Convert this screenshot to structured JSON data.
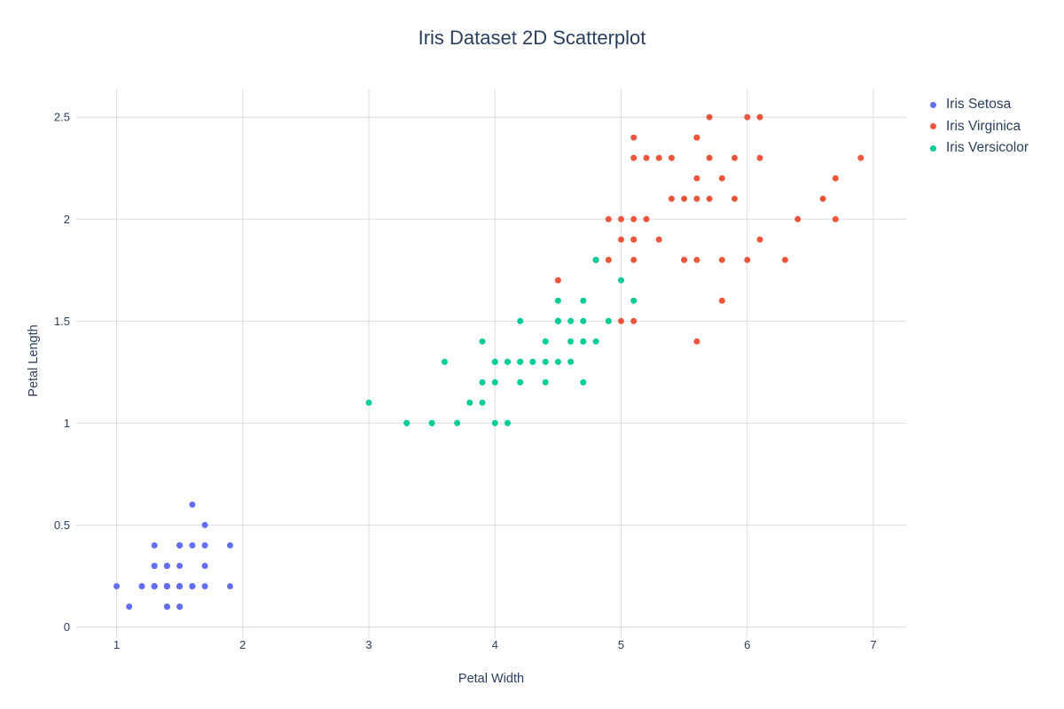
{
  "title": "Iris Dataset 2D Scatterplot",
  "colors": {
    "text": "#2a3f5f",
    "grid": "#dedede",
    "background": "#ffffff",
    "setosa": "#636EFA",
    "virginica": "#EF553B",
    "versicolor": "#00CC96"
  },
  "chart_data": {
    "type": "scatter",
    "title": "Iris Dataset 2D Scatterplot",
    "xlabel": "Petal Width",
    "ylabel": "Petal Length",
    "xlim": [
      0.68,
      7.26
    ],
    "ylim": [
      -0.05,
      2.64
    ],
    "xticks": [
      1,
      2,
      3,
      4,
      5,
      6,
      7
    ],
    "xtick_labels": [
      "1",
      "2",
      "3",
      "4",
      "5",
      "6",
      "7"
    ],
    "yticks": [
      0,
      0.5,
      1,
      1.5,
      2,
      2.5
    ],
    "ytick_labels": [
      "0",
      "0.5",
      "1",
      "1.5",
      "2",
      "2.5"
    ],
    "grid": true,
    "legend_position": "right",
    "marker_diameter_px": 7,
    "series": [
      {
        "name": "Iris Setosa",
        "color": "#636EFA",
        "x": [
          1.4,
          1.4,
          1.3,
          1.5,
          1.4,
          1.7,
          1.4,
          1.5,
          1.4,
          1.5,
          1.5,
          1.6,
          1.4,
          1.1,
          1.2,
          1.5,
          1.3,
          1.4,
          1.7,
          1.5,
          1.7,
          1.5,
          1.0,
          1.7,
          1.9,
          1.6,
          1.6,
          1.5,
          1.4,
          1.6,
          1.6,
          1.5,
          1.5,
          1.4,
          1.5,
          1.2,
          1.3,
          1.4,
          1.3,
          1.5,
          1.3,
          1.3,
          1.3,
          1.6,
          1.9,
          1.4,
          1.6,
          1.4,
          1.5,
          1.4
        ],
        "y": [
          0.2,
          0.2,
          0.2,
          0.2,
          0.2,
          0.4,
          0.3,
          0.2,
          0.2,
          0.1,
          0.2,
          0.2,
          0.1,
          0.1,
          0.2,
          0.4,
          0.4,
          0.3,
          0.3,
          0.3,
          0.2,
          0.4,
          0.2,
          0.5,
          0.2,
          0.2,
          0.4,
          0.2,
          0.2,
          0.2,
          0.2,
          0.4,
          0.1,
          0.2,
          0.2,
          0.2,
          0.2,
          0.1,
          0.2,
          0.2,
          0.3,
          0.3,
          0.2,
          0.6,
          0.4,
          0.3,
          0.2,
          0.2,
          0.2,
          0.2
        ]
      },
      {
        "name": "Iris Virginica",
        "color": "#EF553B",
        "x": [
          6.0,
          5.1,
          5.9,
          5.6,
          5.8,
          6.6,
          4.5,
          6.3,
          5.8,
          6.1,
          5.1,
          5.3,
          5.5,
          5.0,
          5.1,
          5.3,
          5.5,
          6.7,
          6.9,
          5.0,
          5.7,
          4.9,
          6.7,
          4.9,
          5.7,
          6.0,
          4.8,
          4.9,
          5.6,
          5.8,
          6.1,
          6.4,
          5.6,
          5.1,
          5.6,
          6.1,
          5.6,
          5.5,
          4.8,
          5.4,
          5.6,
          5.1,
          5.1,
          5.9,
          5.7,
          5.2,
          5.0,
          5.2,
          5.4,
          5.1
        ],
        "y": [
          2.5,
          1.9,
          2.1,
          1.8,
          2.2,
          2.1,
          1.7,
          1.8,
          1.8,
          2.5,
          2.0,
          1.9,
          2.1,
          2.0,
          2.4,
          2.3,
          1.8,
          2.2,
          2.3,
          1.5,
          2.3,
          2.0,
          2.0,
          1.8,
          2.1,
          1.8,
          1.8,
          1.8,
          2.1,
          1.6,
          1.9,
          2.0,
          2.2,
          1.5,
          1.4,
          2.3,
          2.4,
          1.8,
          1.8,
          2.1,
          2.4,
          2.3,
          1.9,
          2.3,
          2.5,
          2.3,
          1.9,
          2.0,
          2.3,
          1.8
        ]
      },
      {
        "name": "Iris Versicolor",
        "color": "#00CC96",
        "x": [
          4.7,
          4.5,
          4.9,
          4.0,
          4.6,
          4.5,
          4.7,
          3.3,
          4.6,
          3.9,
          3.5,
          4.2,
          4.0,
          4.7,
          3.6,
          4.4,
          4.5,
          4.1,
          4.5,
          3.9,
          4.8,
          4.0,
          4.9,
          4.7,
          4.3,
          4.4,
          4.8,
          5.0,
          4.5,
          3.5,
          3.8,
          3.7,
          3.9,
          5.1,
          4.5,
          4.5,
          4.7,
          4.4,
          4.1,
          4.0,
          4.4,
          4.6,
          4.0,
          3.3,
          4.2,
          4.2,
          4.2,
          4.3,
          3.0,
          4.1
        ],
        "y": [
          1.4,
          1.5,
          1.5,
          1.3,
          1.5,
          1.3,
          1.6,
          1.0,
          1.3,
          1.4,
          1.0,
          1.5,
          1.0,
          1.4,
          1.3,
          1.4,
          1.5,
          1.0,
          1.5,
          1.1,
          1.8,
          1.3,
          1.5,
          1.2,
          1.3,
          1.4,
          1.4,
          1.7,
          1.5,
          1.0,
          1.1,
          1.0,
          1.2,
          1.6,
          1.5,
          1.6,
          1.5,
          1.3,
          1.3,
          1.3,
          1.2,
          1.4,
          1.2,
          1.0,
          1.3,
          1.2,
          1.3,
          1.3,
          1.1,
          1.3
        ]
      }
    ]
  }
}
